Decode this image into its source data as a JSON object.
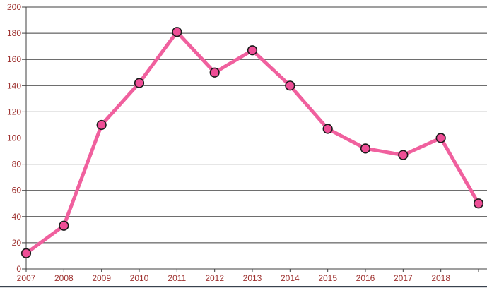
{
  "chart_data": {
    "type": "line",
    "title": "",
    "xlabel": "",
    "ylabel": "",
    "categories": [
      "2007",
      "2008",
      "2009",
      "2010",
      "2011",
      "2012",
      "2013",
      "2014",
      "2015",
      "2016",
      "2017",
      "2018",
      ""
    ],
    "values": [
      12,
      33,
      110,
      142,
      181,
      150,
      167,
      140,
      107,
      92,
      87,
      100,
      50
    ],
    "series": [
      {
        "name": "",
        "values": [
          12,
          33,
          110,
          142,
          181,
          150,
          167,
          140,
          107,
          92,
          87,
          100,
          50
        ]
      }
    ],
    "ylim": [
      0,
      200
    ],
    "y_ticks": [
      0,
      20,
      40,
      60,
      80,
      100,
      120,
      140,
      160,
      180,
      200
    ],
    "grid": true,
    "legend": false
  },
  "style": {
    "line_color": "#F0609E",
    "marker_fill": "#EE4E96",
    "marker_stroke": "#1A1A1A",
    "grid_color": "#3F3F3F",
    "axis_color": "#3F3F3F",
    "tick_label_color": "#9E3230",
    "bottom_border_color": "#39424E",
    "background": "#FFFFFF"
  }
}
